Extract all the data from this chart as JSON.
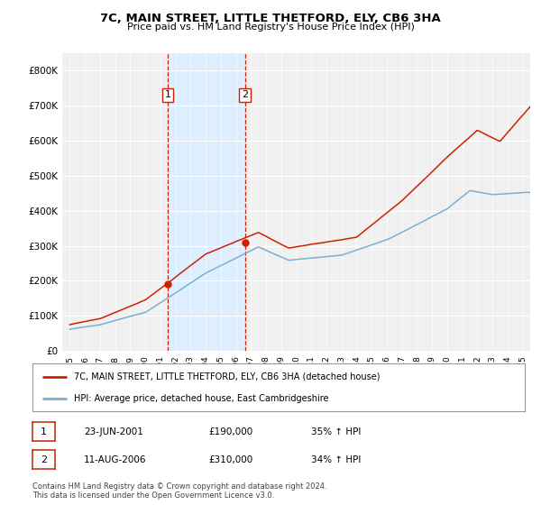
{
  "title": "7C, MAIN STREET, LITTLE THETFORD, ELY, CB6 3HA",
  "subtitle": "Price paid vs. HM Land Registry's House Price Index (HPI)",
  "ytick_values": [
    0,
    100000,
    200000,
    300000,
    400000,
    500000,
    600000,
    700000,
    800000
  ],
  "ylim": [
    0,
    850000
  ],
  "hpi_color": "#7bafd4",
  "price_color": "#cc2200",
  "sale1_date_num": 2001.48,
  "sale1_price": 190000,
  "sale2_date_num": 2006.61,
  "sale2_price": 310000,
  "highlight_color": "#ddeeff",
  "vline_color": "#cc2200",
  "legend_line1": "7C, MAIN STREET, LITTLE THETFORD, ELY, CB6 3HA (detached house)",
  "legend_line2": "HPI: Average price, detached house, East Cambridgeshire",
  "table_row1": [
    "1",
    "23-JUN-2001",
    "£190,000",
    "35% ↑ HPI"
  ],
  "table_row2": [
    "2",
    "11-AUG-2006",
    "£310,000",
    "34% ↑ HPI"
  ],
  "footnote": "Contains HM Land Registry data © Crown copyright and database right 2024.\nThis data is licensed under the Open Government Licence v3.0.",
  "xlim_start": 1994.5,
  "xlim_end": 2025.5,
  "background_color": "#ffffff",
  "plot_bg_color": "#f0f0f0"
}
